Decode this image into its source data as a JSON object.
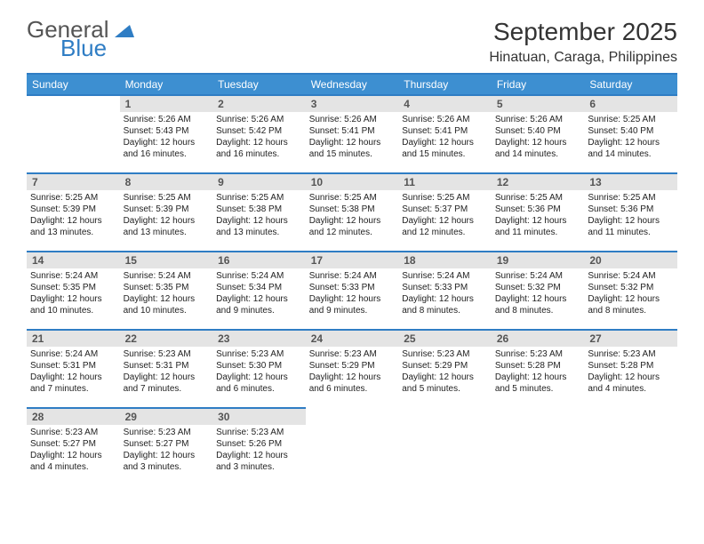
{
  "logo": {
    "word1": "General",
    "word2": "Blue",
    "tri_color": "#2f7dc4"
  },
  "title": "September 2025",
  "location": "Hinatuan, Caraga, Philippines",
  "header_bg": "#3d8fd1",
  "border_color": "#2f7dc4",
  "daynum_bg": "#e4e4e4",
  "weekdays": [
    "Sunday",
    "Monday",
    "Tuesday",
    "Wednesday",
    "Thursday",
    "Friday",
    "Saturday"
  ],
  "firstWeekday": 1,
  "daysInMonth": 30,
  "days": {
    "1": {
      "sunrise": "5:26 AM",
      "sunset": "5:43 PM",
      "daylight": "12 hours and 16 minutes."
    },
    "2": {
      "sunrise": "5:26 AM",
      "sunset": "5:42 PM",
      "daylight": "12 hours and 16 minutes."
    },
    "3": {
      "sunrise": "5:26 AM",
      "sunset": "5:41 PM",
      "daylight": "12 hours and 15 minutes."
    },
    "4": {
      "sunrise": "5:26 AM",
      "sunset": "5:41 PM",
      "daylight": "12 hours and 15 minutes."
    },
    "5": {
      "sunrise": "5:26 AM",
      "sunset": "5:40 PM",
      "daylight": "12 hours and 14 minutes."
    },
    "6": {
      "sunrise": "5:25 AM",
      "sunset": "5:40 PM",
      "daylight": "12 hours and 14 minutes."
    },
    "7": {
      "sunrise": "5:25 AM",
      "sunset": "5:39 PM",
      "daylight": "12 hours and 13 minutes."
    },
    "8": {
      "sunrise": "5:25 AM",
      "sunset": "5:39 PM",
      "daylight": "12 hours and 13 minutes."
    },
    "9": {
      "sunrise": "5:25 AM",
      "sunset": "5:38 PM",
      "daylight": "12 hours and 13 minutes."
    },
    "10": {
      "sunrise": "5:25 AM",
      "sunset": "5:38 PM",
      "daylight": "12 hours and 12 minutes."
    },
    "11": {
      "sunrise": "5:25 AM",
      "sunset": "5:37 PM",
      "daylight": "12 hours and 12 minutes."
    },
    "12": {
      "sunrise": "5:25 AM",
      "sunset": "5:36 PM",
      "daylight": "12 hours and 11 minutes."
    },
    "13": {
      "sunrise": "5:25 AM",
      "sunset": "5:36 PM",
      "daylight": "12 hours and 11 minutes."
    },
    "14": {
      "sunrise": "5:24 AM",
      "sunset": "5:35 PM",
      "daylight": "12 hours and 10 minutes."
    },
    "15": {
      "sunrise": "5:24 AM",
      "sunset": "5:35 PM",
      "daylight": "12 hours and 10 minutes."
    },
    "16": {
      "sunrise": "5:24 AM",
      "sunset": "5:34 PM",
      "daylight": "12 hours and 9 minutes."
    },
    "17": {
      "sunrise": "5:24 AM",
      "sunset": "5:33 PM",
      "daylight": "12 hours and 9 minutes."
    },
    "18": {
      "sunrise": "5:24 AM",
      "sunset": "5:33 PM",
      "daylight": "12 hours and 8 minutes."
    },
    "19": {
      "sunrise": "5:24 AM",
      "sunset": "5:32 PM",
      "daylight": "12 hours and 8 minutes."
    },
    "20": {
      "sunrise": "5:24 AM",
      "sunset": "5:32 PM",
      "daylight": "12 hours and 8 minutes."
    },
    "21": {
      "sunrise": "5:24 AM",
      "sunset": "5:31 PM",
      "daylight": "12 hours and 7 minutes."
    },
    "22": {
      "sunrise": "5:23 AM",
      "sunset": "5:31 PM",
      "daylight": "12 hours and 7 minutes."
    },
    "23": {
      "sunrise": "5:23 AM",
      "sunset": "5:30 PM",
      "daylight": "12 hours and 6 minutes."
    },
    "24": {
      "sunrise": "5:23 AM",
      "sunset": "5:29 PM",
      "daylight": "12 hours and 6 minutes."
    },
    "25": {
      "sunrise": "5:23 AM",
      "sunset": "5:29 PM",
      "daylight": "12 hours and 5 minutes."
    },
    "26": {
      "sunrise": "5:23 AM",
      "sunset": "5:28 PM",
      "daylight": "12 hours and 5 minutes."
    },
    "27": {
      "sunrise": "5:23 AM",
      "sunset": "5:28 PM",
      "daylight": "12 hours and 4 minutes."
    },
    "28": {
      "sunrise": "5:23 AM",
      "sunset": "5:27 PM",
      "daylight": "12 hours and 4 minutes."
    },
    "29": {
      "sunrise": "5:23 AM",
      "sunset": "5:27 PM",
      "daylight": "12 hours and 3 minutes."
    },
    "30": {
      "sunrise": "5:23 AM",
      "sunset": "5:26 PM",
      "daylight": "12 hours and 3 minutes."
    }
  },
  "labels": {
    "sunrise": "Sunrise:",
    "sunset": "Sunset:",
    "daylight": "Daylight:"
  }
}
